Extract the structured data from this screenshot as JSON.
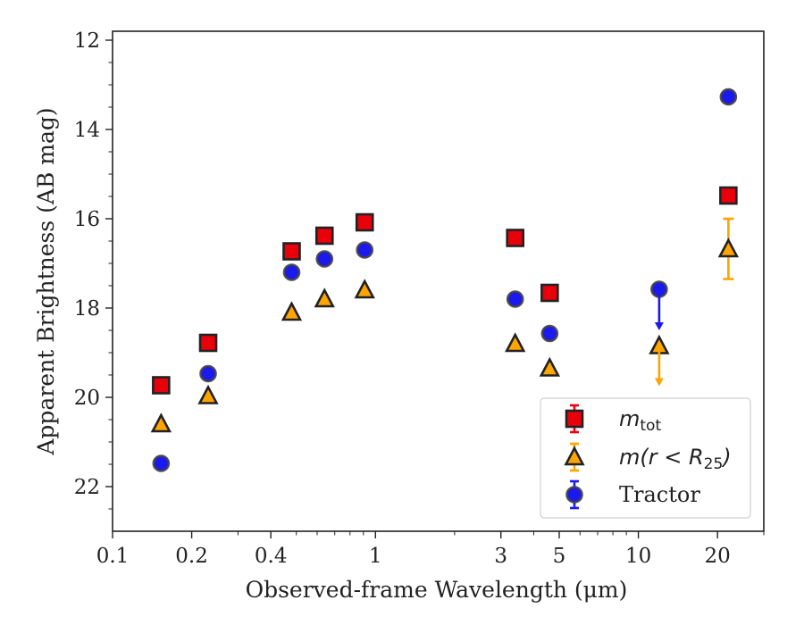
{
  "chart_data": {
    "type": "scatter",
    "xlabel": "Observed-frame Wavelength (μm)",
    "ylabel": "Apparent Brightness (AB mag)",
    "xscale": "log",
    "xlim": [
      0.1,
      30
    ],
    "ylim": [
      23,
      11.8
    ],
    "y_inverted": true,
    "x_ticks": [
      {
        "value": 0.1,
        "label": "0.1"
      },
      {
        "value": 0.2,
        "label": "0.2"
      },
      {
        "value": 0.4,
        "label": "0.4"
      },
      {
        "value": 1,
        "label": "1"
      },
      {
        "value": 3,
        "label": "3"
      },
      {
        "value": 5,
        "label": "5"
      },
      {
        "value": 10,
        "label": "10"
      },
      {
        "value": 20,
        "label": "20"
      }
    ],
    "y_ticks": [
      12,
      14,
      16,
      18,
      20,
      22
    ],
    "legend_position": "lower-right",
    "series": [
      {
        "name": "m_tot",
        "legend_main": "m",
        "legend_sub": "tot",
        "legend_tail": "",
        "marker": "square",
        "color": "#e8000b",
        "points": [
          {
            "x": 0.153,
            "y": 19.73
          },
          {
            "x": 0.231,
            "y": 18.78
          },
          {
            "x": 0.48,
            "y": 16.73
          },
          {
            "x": 0.64,
            "y": 16.38
          },
          {
            "x": 0.91,
            "y": 16.08
          },
          {
            "x": 3.4,
            "y": 16.43
          },
          {
            "x": 4.6,
            "y": 17.66
          },
          {
            "x": 22,
            "y": 15.48
          }
        ]
      },
      {
        "name": "m(r < R_25)",
        "legend_main": "m(r < R",
        "legend_sub": "25",
        "legend_tail": ")",
        "marker": "triangle",
        "color": "#ffa500",
        "points": [
          {
            "x": 0.153,
            "y": 20.6
          },
          {
            "x": 0.231,
            "y": 19.97
          },
          {
            "x": 0.48,
            "y": 18.1
          },
          {
            "x": 0.64,
            "y": 17.8
          },
          {
            "x": 0.91,
            "y": 17.6
          },
          {
            "x": 3.4,
            "y": 18.8
          },
          {
            "x": 4.6,
            "y": 19.35
          },
          {
            "x": 12,
            "y": 18.85,
            "upper_limit": true,
            "arrow_to": 19.75
          },
          {
            "x": 22,
            "y": 16.68,
            "err_low": 16.0,
            "err_high": 17.35
          }
        ]
      },
      {
        "name": "Tractor",
        "legend_main": "Tractor",
        "legend_sub": "",
        "legend_tail": "",
        "marker": "circle",
        "color": "#1a1aee",
        "points": [
          {
            "x": 0.153,
            "y": 21.48
          },
          {
            "x": 0.231,
            "y": 19.47
          },
          {
            "x": 0.48,
            "y": 17.2
          },
          {
            "x": 0.64,
            "y": 16.9
          },
          {
            "x": 0.91,
            "y": 16.7
          },
          {
            "x": 3.4,
            "y": 17.8
          },
          {
            "x": 4.6,
            "y": 18.57
          },
          {
            "x": 12,
            "y": 17.58,
            "upper_limit": true,
            "arrow_to": 18.5
          },
          {
            "x": 22,
            "y": 13.27
          }
        ]
      }
    ]
  }
}
